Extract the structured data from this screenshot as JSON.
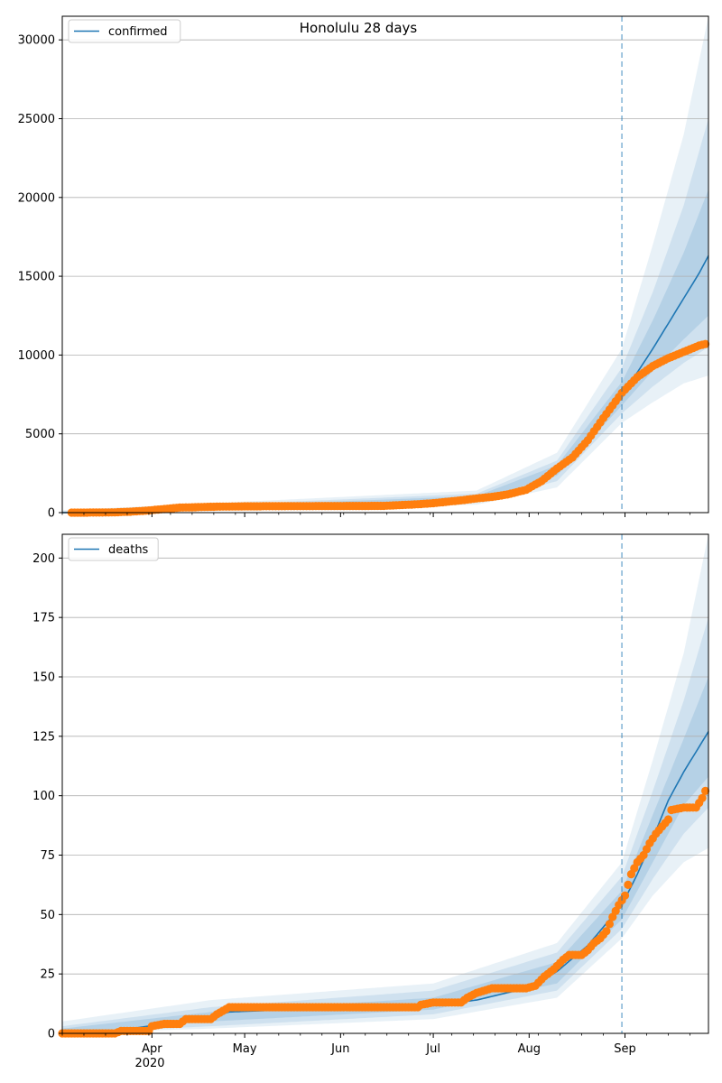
{
  "figure": {
    "title": "Honolulu 28 days",
    "year_label": "2020"
  },
  "colors": {
    "fit": "#1f77b4",
    "observed": "#ff7f0e",
    "band": "#1f77b4",
    "grid": "#b0b0b0",
    "cutoff": "#1f77b4"
  },
  "chart_data": [
    {
      "type": "line",
      "legend": "confirmed",
      "legend_location": "upper left",
      "x_axis_type": "date",
      "xlim": [
        "2020-03-03",
        "2020-09-28"
      ],
      "ylim": [
        0,
        31500
      ],
      "y_ticks": [
        0,
        5000,
        10000,
        15000,
        20000,
        25000,
        30000
      ],
      "x_tick_labels": [
        {
          "date": "2020-04-01",
          "label": "Apr"
        },
        {
          "date": "2020-05-01",
          "label": "May"
        },
        {
          "date": "2020-06-01",
          "label": "Jun"
        },
        {
          "date": "2020-07-01",
          "label": "Jul"
        },
        {
          "date": "2020-08-01",
          "label": "Aug"
        },
        {
          "date": "2020-09-01",
          "label": "Sep"
        }
      ],
      "grid": "horizontal",
      "forecast_start": "2020-08-31",
      "observed": [
        [
          "2020-03-06",
          0
        ],
        [
          "2020-03-15",
          5
        ],
        [
          "2020-03-20",
          20
        ],
        [
          "2020-03-25",
          60
        ],
        [
          "2020-03-30",
          120
        ],
        [
          "2020-04-05",
          230
        ],
        [
          "2020-04-10",
          320
        ],
        [
          "2020-04-20",
          370
        ],
        [
          "2020-05-01",
          400
        ],
        [
          "2020-05-15",
          410
        ],
        [
          "2020-06-01",
          420
        ],
        [
          "2020-06-15",
          430
        ],
        [
          "2020-06-25",
          520
        ],
        [
          "2020-07-01",
          600
        ],
        [
          "2020-07-10",
          780
        ],
        [
          "2020-07-15",
          900
        ],
        [
          "2020-07-20",
          1000
        ],
        [
          "2020-07-25",
          1150
        ],
        [
          "2020-07-31",
          1450
        ],
        [
          "2020-08-05",
          2000
        ],
        [
          "2020-08-10",
          2800
        ],
        [
          "2020-08-15",
          3500
        ],
        [
          "2020-08-20",
          4600
        ],
        [
          "2020-08-25",
          6000
        ],
        [
          "2020-08-31",
          7600
        ],
        [
          "2020-09-05",
          8600
        ],
        [
          "2020-09-10",
          9300
        ],
        [
          "2020-09-15",
          9800
        ],
        [
          "2020-09-20",
          10200
        ],
        [
          "2020-09-25",
          10600
        ],
        [
          "2020-09-27",
          10700
        ]
      ],
      "fit": [
        [
          "2020-03-03",
          0
        ],
        [
          "2020-03-20",
          20
        ],
        [
          "2020-04-05",
          220
        ],
        [
          "2020-04-20",
          360
        ],
        [
          "2020-05-15",
          410
        ],
        [
          "2020-06-15",
          430
        ],
        [
          "2020-07-01",
          600
        ],
        [
          "2020-07-15",
          900
        ],
        [
          "2020-07-31",
          1400
        ],
        [
          "2020-08-10",
          2700
        ],
        [
          "2020-08-20",
          4400
        ],
        [
          "2020-08-31",
          7400
        ],
        [
          "2020-09-05",
          8900
        ],
        [
          "2020-09-10",
          10400
        ],
        [
          "2020-09-15",
          12000
        ],
        [
          "2020-09-20",
          13600
        ],
        [
          "2020-09-25",
          15200
        ],
        [
          "2020-09-28",
          16300
        ]
      ],
      "bands": [
        {
          "level": "outer",
          "lower": [
            [
              "2020-03-03",
              0
            ],
            [
              "2020-07-15",
              500
            ],
            [
              "2020-08-10",
              1600
            ],
            [
              "2020-08-31",
              5700
            ],
            [
              "2020-09-10",
              7000
            ],
            [
              "2020-09-20",
              8200
            ],
            [
              "2020-09-28",
              8700
            ]
          ],
          "upper": [
            [
              "2020-03-03",
              150
            ],
            [
              "2020-07-15",
              1400
            ],
            [
              "2020-08-10",
              3800
            ],
            [
              "2020-08-31",
              10400
            ],
            [
              "2020-09-10",
              17000
            ],
            [
              "2020-09-20",
              24000
            ],
            [
              "2020-09-28",
              31500
            ]
          ]
        },
        {
          "level": "middle",
          "lower": [
            [
              "2020-03-03",
              0
            ],
            [
              "2020-07-15",
              650
            ],
            [
              "2020-08-10",
              2000
            ],
            [
              "2020-08-31",
              6300
            ],
            [
              "2020-09-10",
              8000
            ],
            [
              "2020-09-20",
              9500
            ],
            [
              "2020-09-28",
              10500
            ]
          ],
          "upper": [
            [
              "2020-03-03",
              80
            ],
            [
              "2020-07-15",
              1200
            ],
            [
              "2020-08-10",
              3300
            ],
            [
              "2020-08-31",
              9200
            ],
            [
              "2020-09-10",
              14000
            ],
            [
              "2020-09-20",
              19500
            ],
            [
              "2020-09-28",
              25000
            ]
          ]
        },
        {
          "level": "inner",
          "lower": [
            [
              "2020-03-03",
              0
            ],
            [
              "2020-07-15",
              780
            ],
            [
              "2020-08-10",
              2350
            ],
            [
              "2020-08-31",
              6800
            ],
            [
              "2020-09-10",
              9000
            ],
            [
              "2020-09-20",
              11000
            ],
            [
              "2020-09-28",
              12500
            ]
          ],
          "upper": [
            [
              "2020-03-03",
              40
            ],
            [
              "2020-07-15",
              1050
            ],
            [
              "2020-08-10",
              3000
            ],
            [
              "2020-08-31",
              8300
            ],
            [
              "2020-09-10",
              12200
            ],
            [
              "2020-09-20",
              16500
            ],
            [
              "2020-09-28",
              20500
            ]
          ]
        }
      ]
    },
    {
      "type": "line",
      "legend": "deaths",
      "legend_location": "upper left",
      "x_axis_type": "date",
      "xlim": [
        "2020-03-03",
        "2020-09-28"
      ],
      "ylim": [
        0,
        210
      ],
      "y_ticks": [
        0,
        25,
        50,
        75,
        100,
        125,
        150,
        175,
        200
      ],
      "x_tick_labels": [
        {
          "date": "2020-04-01",
          "label": "Apr"
        },
        {
          "date": "2020-05-01",
          "label": "May"
        },
        {
          "date": "2020-06-01",
          "label": "Jun"
        },
        {
          "date": "2020-07-01",
          "label": "Jul"
        },
        {
          "date": "2020-08-01",
          "label": "Aug"
        },
        {
          "date": "2020-09-01",
          "label": "Sep"
        }
      ],
      "grid": "horizontal",
      "forecast_start": "2020-08-31",
      "observed": [
        [
          "2020-03-03",
          0
        ],
        [
          "2020-03-20",
          0
        ],
        [
          "2020-03-22",
          1
        ],
        [
          "2020-03-31",
          1
        ],
        [
          "2020-04-01",
          3
        ],
        [
          "2020-04-05",
          4
        ],
        [
          "2020-04-10",
          4
        ],
        [
          "2020-04-12",
          6
        ],
        [
          "2020-04-20",
          6
        ],
        [
          "2020-04-22",
          8
        ],
        [
          "2020-04-26",
          11
        ],
        [
          "2020-05-15",
          11
        ],
        [
          "2020-06-15",
          11
        ],
        [
          "2020-06-26",
          11
        ],
        [
          "2020-06-27",
          12
        ],
        [
          "2020-07-01",
          13
        ],
        [
          "2020-07-10",
          13
        ],
        [
          "2020-07-12",
          15
        ],
        [
          "2020-07-15",
          17
        ],
        [
          "2020-07-20",
          19
        ],
        [
          "2020-07-31",
          19
        ],
        [
          "2020-08-03",
          20
        ],
        [
          "2020-08-06",
          24
        ],
        [
          "2020-08-09",
          27
        ],
        [
          "2020-08-12",
          31
        ],
        [
          "2020-08-14",
          33
        ],
        [
          "2020-08-18",
          33
        ],
        [
          "2020-08-20",
          35
        ],
        [
          "2020-08-22",
          38
        ],
        [
          "2020-08-24",
          40
        ],
        [
          "2020-08-26",
          43
        ],
        [
          "2020-08-28",
          49
        ],
        [
          "2020-08-30",
          54
        ],
        [
          "2020-09-01",
          58
        ],
        [
          "2020-09-03",
          67
        ],
        [
          "2020-09-05",
          72
        ],
        [
          "2020-09-07",
          75
        ],
        [
          "2020-09-09",
          80
        ],
        [
          "2020-09-11",
          84
        ],
        [
          "2020-09-13",
          87
        ],
        [
          "2020-09-15",
          90
        ],
        [
          "2020-09-16",
          94
        ],
        [
          "2020-09-20",
          95
        ],
        [
          "2020-09-24",
          95
        ],
        [
          "2020-09-26",
          99
        ],
        [
          "2020-09-27",
          102
        ]
      ],
      "fit": [
        [
          "2020-03-03",
          0
        ],
        [
          "2020-03-20",
          1
        ],
        [
          "2020-04-05",
          4
        ],
        [
          "2020-04-20",
          7
        ],
        [
          "2020-04-26",
          9
        ],
        [
          "2020-05-15",
          10
        ],
        [
          "2020-06-15",
          11
        ],
        [
          "2020-07-01",
          12
        ],
        [
          "2020-07-15",
          14
        ],
        [
          "2020-07-31",
          19
        ],
        [
          "2020-08-10",
          26
        ],
        [
          "2020-08-20",
          37
        ],
        [
          "2020-08-31",
          54
        ],
        [
          "2020-09-05",
          67
        ],
        [
          "2020-09-10",
          82
        ],
        [
          "2020-09-15",
          98
        ],
        [
          "2020-09-20",
          110
        ],
        [
          "2020-09-28",
          127
        ]
      ],
      "bands": [
        {
          "level": "outer",
          "lower": [
            [
              "2020-03-03",
              0
            ],
            [
              "2020-04-20",
              2
            ],
            [
              "2020-07-01",
              6
            ],
            [
              "2020-08-10",
              15
            ],
            [
              "2020-08-31",
              40
            ],
            [
              "2020-09-10",
              58
            ],
            [
              "2020-09-20",
              72
            ],
            [
              "2020-09-28",
              78
            ]
          ],
          "upper": [
            [
              "2020-03-03",
              5
            ],
            [
              "2020-04-20",
              14
            ],
            [
              "2020-07-01",
              21
            ],
            [
              "2020-08-10",
              38
            ],
            [
              "2020-08-31",
              72
            ],
            [
              "2020-09-10",
              115
            ],
            [
              "2020-09-20",
              160
            ],
            [
              "2020-09-28",
              210
            ]
          ]
        },
        {
          "level": "middle",
          "lower": [
            [
              "2020-03-03",
              0
            ],
            [
              "2020-04-20",
              3
            ],
            [
              "2020-07-01",
              8
            ],
            [
              "2020-08-10",
              18
            ],
            [
              "2020-08-31",
              44
            ],
            [
              "2020-09-10",
              65
            ],
            [
              "2020-09-20",
              84
            ],
            [
              "2020-09-28",
              95
            ]
          ],
          "upper": [
            [
              "2020-03-03",
              3
            ],
            [
              "2020-04-20",
              11
            ],
            [
              "2020-07-01",
              18
            ],
            [
              "2020-08-10",
              34
            ],
            [
              "2020-08-31",
              66
            ],
            [
              "2020-09-10",
              102
            ],
            [
              "2020-09-20",
              140
            ],
            [
              "2020-09-28",
              175
            ]
          ]
        },
        {
          "level": "inner",
          "lower": [
            [
              "2020-03-03",
              0
            ],
            [
              "2020-04-20",
              5
            ],
            [
              "2020-07-01",
              10
            ],
            [
              "2020-08-10",
              21
            ],
            [
              "2020-08-31",
              48
            ],
            [
              "2020-09-10",
              72
            ],
            [
              "2020-09-20",
              96
            ],
            [
              "2020-09-28",
              108
            ]
          ],
          "upper": [
            [
              "2020-03-03",
              2
            ],
            [
              "2020-04-20",
              9
            ],
            [
              "2020-07-01",
              15
            ],
            [
              "2020-08-10",
              30
            ],
            [
              "2020-08-31",
              60
            ],
            [
              "2020-09-10",
              92
            ],
            [
              "2020-09-20",
              124
            ],
            [
              "2020-09-28",
              150
            ]
          ]
        }
      ]
    }
  ]
}
